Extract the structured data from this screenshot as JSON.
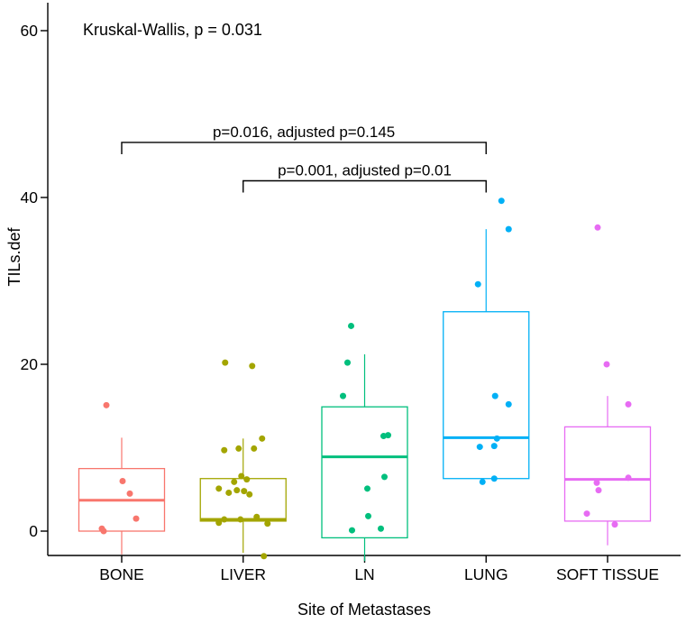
{
  "annotations": {
    "kruskal_wallis": "Kruskal-Wallis, p = 0.031"
  },
  "chart_data": {
    "type": "boxplot",
    "title": "",
    "xlabel": "Site of Metastases",
    "ylabel": "TILs.def",
    "y_ticks": [
      0,
      20,
      40,
      60
    ],
    "ylim": [
      -4.5,
      63
    ],
    "grid": "off",
    "legend": "none",
    "categories": [
      "BONE",
      "LIVER",
      "LN",
      "LUNG",
      "SOFT TISSUE"
    ],
    "groups": [
      {
        "name": "BONE",
        "color": "#F8766D",
        "box": {
          "whisker_low": -2.8,
          "q1": 0.0,
          "median": 3.7,
          "q3": 7.5,
          "whisker_high": 11.2
        },
        "points": [
          [
            -17,
            15.1
          ],
          [
            1,
            6.0
          ],
          [
            9,
            4.5
          ],
          [
            16,
            1.5
          ],
          [
            -22,
            0.3
          ],
          [
            -20,
            0.0
          ]
        ]
      },
      {
        "name": "LIVER",
        "color": "#A3A500",
        "box": {
          "whisker_low": -2.6,
          "q1": 1.2,
          "median": 1.4,
          "q3": 6.3,
          "whisker_high": 11.1
        },
        "points": [
          [
            -20,
            20.2
          ],
          [
            10,
            19.8
          ],
          [
            21,
            11.1
          ],
          [
            -21,
            9.7
          ],
          [
            -5,
            9.9
          ],
          [
            12,
            9.9
          ],
          [
            -2,
            6.6
          ],
          [
            4,
            6.2
          ],
          [
            -10,
            5.9
          ],
          [
            -27,
            5.1
          ],
          [
            -16,
            4.6
          ],
          [
            -7,
            4.9
          ],
          [
            1,
            4.8
          ],
          [
            7,
            4.4
          ],
          [
            15,
            1.7
          ],
          [
            -21,
            1.4
          ],
          [
            -3,
            1.4
          ],
          [
            -27,
            1.0
          ],
          [
            27,
            0.9
          ],
          [
            23,
            -3.0
          ]
        ]
      },
      {
        "name": "LN",
        "color": "#00BF7D",
        "box": {
          "whisker_low": -3.6,
          "q1": -0.8,
          "median": 8.9,
          "q3": 14.9,
          "whisker_high": 21.2
        },
        "points": [
          [
            -15,
            24.6
          ],
          [
            -19,
            20.2
          ],
          [
            -24,
            16.2
          ],
          [
            26,
            11.5
          ],
          [
            21,
            11.4
          ],
          [
            22,
            6.5
          ],
          [
            3,
            5.1
          ],
          [
            4,
            1.8
          ],
          [
            18,
            0.3
          ],
          [
            -14,
            0.1
          ]
        ]
      },
      {
        "name": "LUNG",
        "color": "#00B0F6",
        "box": {
          "whisker_low": 6.3,
          "q1": 6.3,
          "median": 11.2,
          "q3": 26.3,
          "whisker_high": 36.2
        },
        "points": [
          [
            17,
            39.6
          ],
          [
            25,
            36.2
          ],
          [
            -9,
            29.6
          ],
          [
            10,
            16.2
          ],
          [
            25,
            15.2
          ],
          [
            12,
            11.1
          ],
          [
            9,
            10.2
          ],
          [
            -7,
            10.1
          ],
          [
            9,
            6.3
          ],
          [
            -4,
            5.9
          ]
        ]
      },
      {
        "name": "SOFT TISSUE",
        "color": "#E76BF3",
        "box": {
          "whisker_low": -1.7,
          "q1": 1.2,
          "median": 6.2,
          "q3": 12.5,
          "whisker_high": 16.2
        },
        "points": [
          [
            -11,
            36.4
          ],
          [
            -1,
            20.0
          ],
          [
            23,
            15.2
          ],
          [
            23,
            6.4
          ],
          [
            -12,
            5.8
          ],
          [
            -10,
            4.9
          ],
          [
            -23,
            2.1
          ],
          [
            8,
            0.8
          ]
        ]
      }
    ],
    "comparisons": [
      {
        "label": "p=0.016, adjusted p=0.145",
        "group1": "BONE",
        "group2": "LUNG",
        "y": 46.6
      },
      {
        "label": "p=0.001, adjusted p=0.01",
        "group1": "LIVER",
        "group2": "LUNG",
        "y": 42.0
      }
    ],
    "colors": {
      "axis": "#000000",
      "text": "#000000",
      "background": "#ffffff"
    }
  }
}
